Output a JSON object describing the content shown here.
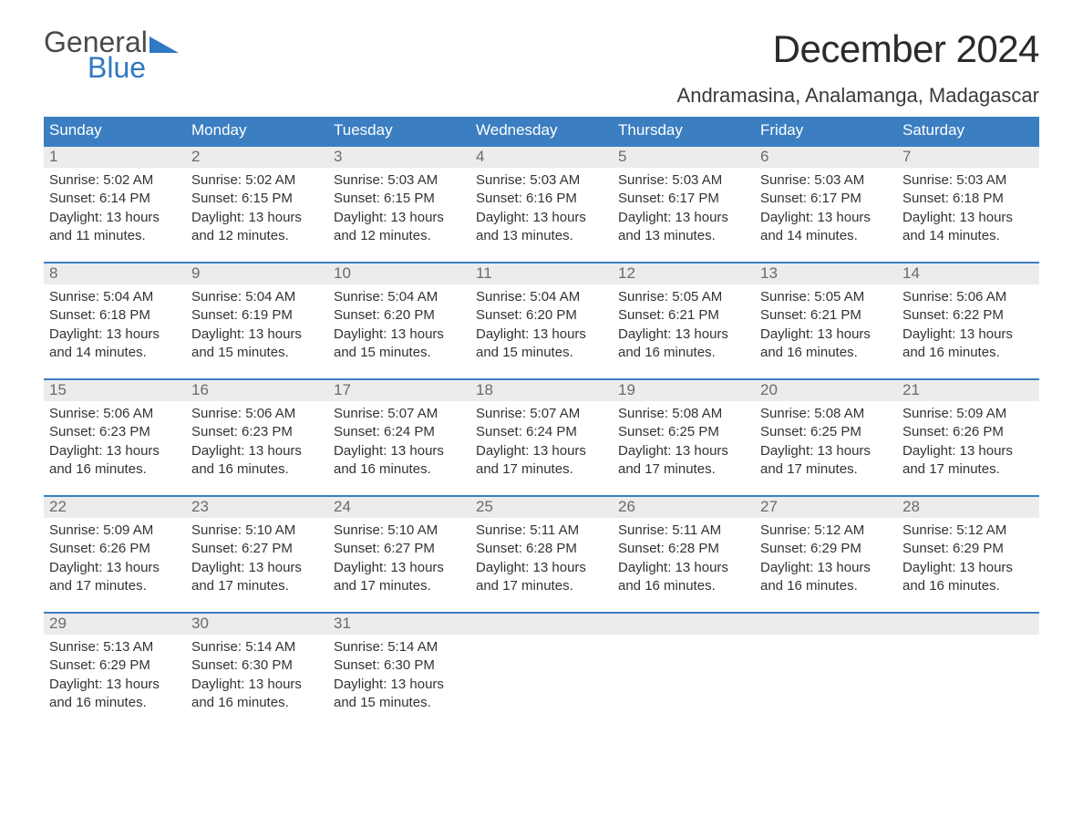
{
  "logo": {
    "word1": "General",
    "word2": "Blue",
    "tri_color": "#2f79c2",
    "text_gray": "#4a4a4a"
  },
  "title": "December 2024",
  "location": "Andramasina, Analamanga, Madagascar",
  "colors": {
    "header_bg": "#3b7ec1",
    "header_text": "#ffffff",
    "daynum_bg": "#ececec",
    "daynum_text": "#6b6b6b",
    "body_text": "#333333",
    "week_border": "#3b7ec1",
    "page_bg": "#ffffff"
  },
  "typography": {
    "title_fontsize": 42,
    "location_fontsize": 22,
    "dow_fontsize": 17,
    "daynum_fontsize": 17,
    "body_fontsize": 15
  },
  "days_of_week": [
    "Sunday",
    "Monday",
    "Tuesday",
    "Wednesday",
    "Thursday",
    "Friday",
    "Saturday"
  ],
  "labels": {
    "sunrise": "Sunrise:",
    "sunset": "Sunset:",
    "daylight": "Daylight:"
  },
  "weeks": [
    [
      {
        "n": "1",
        "sunrise": "5:02 AM",
        "sunset": "6:14 PM",
        "daylight": "13 hours and 11 minutes."
      },
      {
        "n": "2",
        "sunrise": "5:02 AM",
        "sunset": "6:15 PM",
        "daylight": "13 hours and 12 minutes."
      },
      {
        "n": "3",
        "sunrise": "5:03 AM",
        "sunset": "6:15 PM",
        "daylight": "13 hours and 12 minutes."
      },
      {
        "n": "4",
        "sunrise": "5:03 AM",
        "sunset": "6:16 PM",
        "daylight": "13 hours and 13 minutes."
      },
      {
        "n": "5",
        "sunrise": "5:03 AM",
        "sunset": "6:17 PM",
        "daylight": "13 hours and 13 minutes."
      },
      {
        "n": "6",
        "sunrise": "5:03 AM",
        "sunset": "6:17 PM",
        "daylight": "13 hours and 14 minutes."
      },
      {
        "n": "7",
        "sunrise": "5:03 AM",
        "sunset": "6:18 PM",
        "daylight": "13 hours and 14 minutes."
      }
    ],
    [
      {
        "n": "8",
        "sunrise": "5:04 AM",
        "sunset": "6:18 PM",
        "daylight": "13 hours and 14 minutes."
      },
      {
        "n": "9",
        "sunrise": "5:04 AM",
        "sunset": "6:19 PM",
        "daylight": "13 hours and 15 minutes."
      },
      {
        "n": "10",
        "sunrise": "5:04 AM",
        "sunset": "6:20 PM",
        "daylight": "13 hours and 15 minutes."
      },
      {
        "n": "11",
        "sunrise": "5:04 AM",
        "sunset": "6:20 PM",
        "daylight": "13 hours and 15 minutes."
      },
      {
        "n": "12",
        "sunrise": "5:05 AM",
        "sunset": "6:21 PM",
        "daylight": "13 hours and 16 minutes."
      },
      {
        "n": "13",
        "sunrise": "5:05 AM",
        "sunset": "6:21 PM",
        "daylight": "13 hours and 16 minutes."
      },
      {
        "n": "14",
        "sunrise": "5:06 AM",
        "sunset": "6:22 PM",
        "daylight": "13 hours and 16 minutes."
      }
    ],
    [
      {
        "n": "15",
        "sunrise": "5:06 AM",
        "sunset": "6:23 PM",
        "daylight": "13 hours and 16 minutes."
      },
      {
        "n": "16",
        "sunrise": "5:06 AM",
        "sunset": "6:23 PM",
        "daylight": "13 hours and 16 minutes."
      },
      {
        "n": "17",
        "sunrise": "5:07 AM",
        "sunset": "6:24 PM",
        "daylight": "13 hours and 16 minutes."
      },
      {
        "n": "18",
        "sunrise": "5:07 AM",
        "sunset": "6:24 PM",
        "daylight": "13 hours and 17 minutes."
      },
      {
        "n": "19",
        "sunrise": "5:08 AM",
        "sunset": "6:25 PM",
        "daylight": "13 hours and 17 minutes."
      },
      {
        "n": "20",
        "sunrise": "5:08 AM",
        "sunset": "6:25 PM",
        "daylight": "13 hours and 17 minutes."
      },
      {
        "n": "21",
        "sunrise": "5:09 AM",
        "sunset": "6:26 PM",
        "daylight": "13 hours and 17 minutes."
      }
    ],
    [
      {
        "n": "22",
        "sunrise": "5:09 AM",
        "sunset": "6:26 PM",
        "daylight": "13 hours and 17 minutes."
      },
      {
        "n": "23",
        "sunrise": "5:10 AM",
        "sunset": "6:27 PM",
        "daylight": "13 hours and 17 minutes."
      },
      {
        "n": "24",
        "sunrise": "5:10 AM",
        "sunset": "6:27 PM",
        "daylight": "13 hours and 17 minutes."
      },
      {
        "n": "25",
        "sunrise": "5:11 AM",
        "sunset": "6:28 PM",
        "daylight": "13 hours and 17 minutes."
      },
      {
        "n": "26",
        "sunrise": "5:11 AM",
        "sunset": "6:28 PM",
        "daylight": "13 hours and 16 minutes."
      },
      {
        "n": "27",
        "sunrise": "5:12 AM",
        "sunset": "6:29 PM",
        "daylight": "13 hours and 16 minutes."
      },
      {
        "n": "28",
        "sunrise": "5:12 AM",
        "sunset": "6:29 PM",
        "daylight": "13 hours and 16 minutes."
      }
    ],
    [
      {
        "n": "29",
        "sunrise": "5:13 AM",
        "sunset": "6:29 PM",
        "daylight": "13 hours and 16 minutes."
      },
      {
        "n": "30",
        "sunrise": "5:14 AM",
        "sunset": "6:30 PM",
        "daylight": "13 hours and 16 minutes."
      },
      {
        "n": "31",
        "sunrise": "5:14 AM",
        "sunset": "6:30 PM",
        "daylight": "13 hours and 15 minutes."
      },
      null,
      null,
      null,
      null
    ]
  ]
}
